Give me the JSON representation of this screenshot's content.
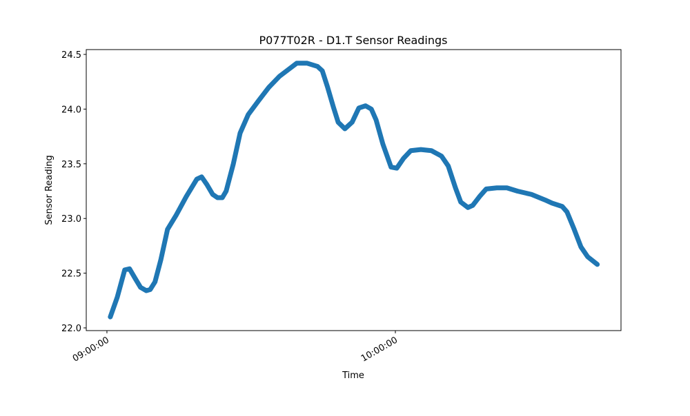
{
  "chart_data": {
    "type": "line",
    "title": "P077T02R - D1.T Sensor Readings",
    "x_label": "Time",
    "y_label": "Sensor Reading",
    "x": [
      "09:00:42",
      "09:02:09",
      "09:03:42",
      "09:04:42",
      "09:05:54",
      "09:07:00",
      "09:08:12",
      "09:09:00",
      "09:10:00",
      "09:11:12",
      "09:12:36",
      "09:14:24",
      "09:16:30",
      "09:18:42",
      "09:19:42",
      "09:20:48",
      "09:22:00",
      "09:23:00",
      "09:24:00",
      "09:24:48",
      "09:26:18",
      "09:27:42",
      "09:29:24",
      "09:31:36",
      "09:33:42",
      "09:35:54",
      "09:38:00",
      "09:39:30",
      "09:41:36",
      "09:43:48",
      "09:44:48",
      "09:45:54",
      "09:47:06",
      "09:48:06",
      "09:49:30",
      "09:51:00",
      "09:52:24",
      "09:53:48",
      "09:55:00",
      "09:56:00",
      "09:57:24",
      "09:59:06",
      "10:00:18",
      "10:01:42",
      "10:03:12",
      "10:05:18",
      "10:07:30",
      "10:09:36",
      "10:11:00",
      "10:12:30",
      "10:13:36",
      "10:15:06",
      "10:16:06",
      "10:17:30",
      "10:18:54",
      "10:21:06",
      "10:23:12",
      "10:25:24",
      "10:28:18",
      "10:31:06",
      "10:32:36",
      "10:34:42",
      "10:35:42",
      "10:37:12",
      "10:38:36",
      "10:40:00",
      "10:42:00"
    ],
    "series": [
      {
        "name": "D1.T",
        "color": "#1f77b4",
        "values": [
          22.1,
          22.28,
          22.53,
          22.54,
          22.45,
          22.37,
          22.34,
          22.35,
          22.42,
          22.62,
          22.9,
          23.03,
          23.2,
          23.36,
          23.38,
          23.31,
          23.22,
          23.19,
          23.19,
          23.25,
          23.5,
          23.78,
          23.95,
          24.08,
          24.2,
          24.3,
          24.37,
          24.42,
          24.42,
          24.39,
          24.35,
          24.2,
          24.02,
          23.88,
          23.82,
          23.88,
          24.01,
          24.03,
          24.0,
          23.9,
          23.68,
          23.47,
          23.46,
          23.55,
          23.62,
          23.63,
          23.62,
          23.57,
          23.48,
          23.28,
          23.15,
          23.1,
          23.12,
          23.2,
          23.27,
          23.28,
          23.28,
          23.25,
          23.22,
          23.17,
          23.14,
          23.11,
          23.06,
          22.9,
          22.74,
          22.65,
          22.58
        ]
      }
    ],
    "xlim": [
      "08:55:42",
      "10:46:56"
    ],
    "xticks": [
      "09:00:00",
      "10:00:00"
    ],
    "ylim": [
      21.975,
      24.544
    ],
    "yticks": [
      {
        "value": 22,
        "label": "22.0"
      },
      22.5,
      {
        "value": 23,
        "label": "23.0"
      },
      23.5,
      {
        "value": 24,
        "label": "24.0"
      },
      24.5
    ]
  }
}
